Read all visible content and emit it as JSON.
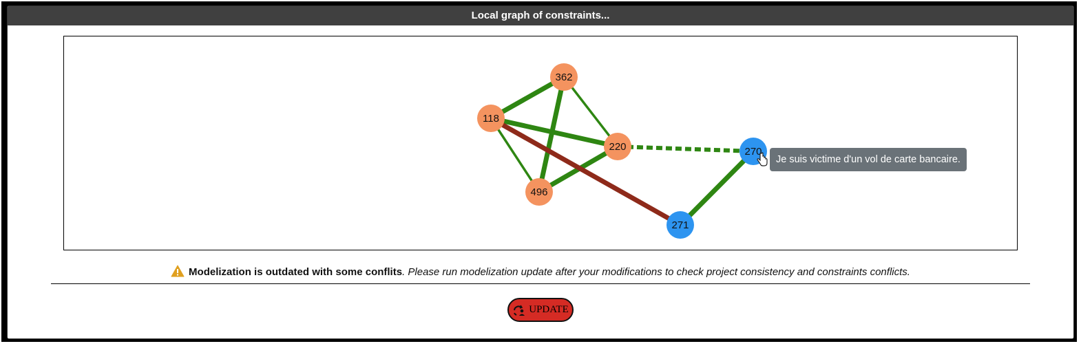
{
  "panel": {
    "title": "Local graph of constraints..."
  },
  "graph": {
    "colors": {
      "orange_node": "#f4935f",
      "blue_node": "#2d94f0",
      "positive_edge": "#2e8612",
      "conflict_edge": "#8e2a1a"
    },
    "nodes": [
      {
        "id": "362",
        "label": "362",
        "kind": "orange"
      },
      {
        "id": "118",
        "label": "118",
        "kind": "orange"
      },
      {
        "id": "220",
        "label": "220",
        "kind": "orange"
      },
      {
        "id": "496",
        "label": "496",
        "kind": "orange"
      },
      {
        "id": "270",
        "label": "270",
        "kind": "blue"
      },
      {
        "id": "271",
        "label": "271",
        "kind": "blue"
      }
    ],
    "edges": [
      {
        "source": "118",
        "target": "362",
        "type": "positive",
        "weight": "strong"
      },
      {
        "source": "362",
        "target": "496",
        "type": "positive",
        "weight": "strong"
      },
      {
        "source": "362",
        "target": "220",
        "type": "positive",
        "weight": "weak"
      },
      {
        "source": "118",
        "target": "220",
        "type": "positive",
        "weight": "strong"
      },
      {
        "source": "118",
        "target": "496",
        "type": "positive",
        "weight": "weak"
      },
      {
        "source": "496",
        "target": "220",
        "type": "positive",
        "weight": "strong"
      },
      {
        "source": "118",
        "target": "271",
        "type": "conflict",
        "weight": "strong"
      },
      {
        "source": "220",
        "target": "270",
        "type": "positive",
        "weight": "dashed"
      },
      {
        "source": "271",
        "target": "270",
        "type": "positive",
        "weight": "strong"
      }
    ],
    "tooltip": "Je suis victime d'un vol de carte bancaire."
  },
  "status": {
    "icon": "warning-icon",
    "strong_text": "Modelization is outdated with some conflits",
    "hint_text": ". Please run modelization update after your modifications to check project consistency and constraints conflicts."
  },
  "update_button": {
    "icon": "refresh-user-icon",
    "label": "UPDATE"
  }
}
